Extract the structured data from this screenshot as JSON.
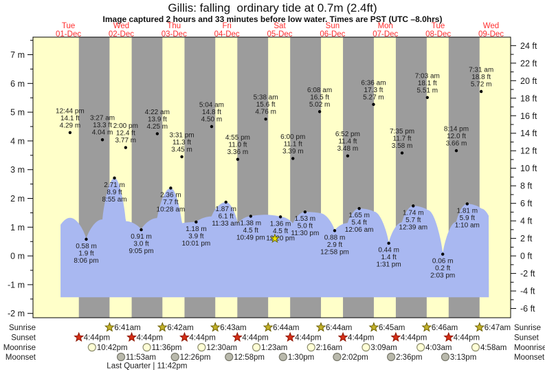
{
  "title": "Gillis: falling  ordinary tide at 0.7m (2.4ft)",
  "subtitle": "Image captured 2 hours and 33 minutes before low water. Times are PST (UTC –8.0hrs)",
  "chart_data": {
    "type": "area",
    "title": "Gillis: falling ordinary tide at 0.7m (2.4ft)",
    "y_axis_left": {
      "unit": "m",
      "min": -2,
      "max": 7,
      "major_step": 1
    },
    "y_axis_right": {
      "unit": "ft",
      "min": -6,
      "max": 24,
      "major_step": 2
    },
    "days": [
      {
        "name": "Tue",
        "date": "01-Dec"
      },
      {
        "name": "Wed",
        "date": "02-Dec"
      },
      {
        "name": "Thu",
        "date": "03-Dec"
      },
      {
        "name": "Fri",
        "date": "04-Dec"
      },
      {
        "name": "Sat",
        "date": "05-Dec"
      },
      {
        "name": "Sun",
        "date": "06-Dec"
      },
      {
        "name": "Mon",
        "date": "07-Dec"
      },
      {
        "name": "Tue",
        "date": "08-Dec"
      },
      {
        "name": "Wed",
        "date": "09-Dec"
      }
    ],
    "extremes": [
      {
        "kind": "high",
        "day": 0,
        "time24": "12:44",
        "time": "12:44 pm",
        "m": 4.29,
        "ft": 14.1
      },
      {
        "kind": "low",
        "day": 0,
        "time24": "20:06",
        "time": "8:06 pm",
        "m": 0.58,
        "ft": 1.9
      },
      {
        "kind": "high",
        "day": 1,
        "time24": "03:27",
        "time": "3:27 am",
        "m": 4.04,
        "ft": 13.3
      },
      {
        "kind": "low",
        "day": 1,
        "time24": "08:55",
        "time": "8:55 am",
        "m": 2.71,
        "ft": 8.9
      },
      {
        "kind": "high",
        "day": 1,
        "time24": "14:00",
        "time": "2:00 pm",
        "m": 3.77,
        "ft": 12.4
      },
      {
        "kind": "low",
        "day": 1,
        "time24": "21:05",
        "time": "9:05 pm",
        "m": 0.91,
        "ft": 3.0
      },
      {
        "kind": "high",
        "day": 2,
        "time24": "04:22",
        "time": "4:22 am",
        "m": 4.25,
        "ft": 13.9
      },
      {
        "kind": "low",
        "day": 2,
        "time24": "10:28",
        "time": "10:28 am",
        "m": 2.36,
        "ft": 7.7
      },
      {
        "kind": "high",
        "day": 2,
        "time24": "15:31",
        "time": "3:31 pm",
        "m": 3.45,
        "ft": 11.3
      },
      {
        "kind": "low",
        "day": 2,
        "time24": "22:01",
        "time": "10:01 pm",
        "m": 1.18,
        "ft": 3.9
      },
      {
        "kind": "high",
        "day": 3,
        "time24": "05:04",
        "time": "5:04 am",
        "m": 4.5,
        "ft": 14.8
      },
      {
        "kind": "low",
        "day": 3,
        "time24": "11:33",
        "time": "11:33 am",
        "m": 1.87,
        "ft": 6.1
      },
      {
        "kind": "high",
        "day": 3,
        "time24": "16:55",
        "time": "4:55 pm",
        "m": 3.36,
        "ft": 11.0
      },
      {
        "kind": "low",
        "day": 3,
        "time24": "22:49",
        "time": "10:49 pm",
        "m": 1.38,
        "ft": 4.5
      },
      {
        "kind": "high",
        "day": 4,
        "time24": "05:38",
        "time": "5:38 am",
        "m": 4.76,
        "ft": 15.6
      },
      {
        "kind": "low",
        "day": 4,
        "time24": "12:20",
        "time": "12:20 pm",
        "m": 1.36,
        "ft": 4.5
      },
      {
        "kind": "high",
        "day": 4,
        "time24": "18:00",
        "time": "6:00 pm",
        "m": 3.39,
        "ft": 11.1
      },
      {
        "kind": "low",
        "day": 4,
        "time24": "23:30",
        "time": "11:30 pm",
        "m": 1.53,
        "ft": 5.0
      },
      {
        "kind": "high",
        "day": 5,
        "time24": "06:08",
        "time": "6:08 am",
        "m": 5.02,
        "ft": 16.5
      },
      {
        "kind": "low",
        "day": 5,
        "time24": "12:58",
        "time": "12:58 pm",
        "m": 0.88,
        "ft": 2.9
      },
      {
        "kind": "high",
        "day": 5,
        "time24": "18:52",
        "time": "6:52 pm",
        "m": 3.48,
        "ft": 11.4
      },
      {
        "kind": "low",
        "day": 6,
        "time24": "00:06",
        "time": "12:06 am",
        "m": 1.65,
        "ft": 5.4
      },
      {
        "kind": "high",
        "day": 6,
        "time24": "06:36",
        "time": "6:36 am",
        "m": 5.27,
        "ft": 17.3
      },
      {
        "kind": "low",
        "day": 6,
        "time24": "13:31",
        "time": "1:31 pm",
        "m": 0.44,
        "ft": 1.4
      },
      {
        "kind": "high",
        "day": 6,
        "time24": "19:35",
        "time": "7:35 pm",
        "m": 3.58,
        "ft": 11.7
      },
      {
        "kind": "low",
        "day": 7,
        "time24": "00:39",
        "time": "12:39 am",
        "m": 1.74,
        "ft": 5.7
      },
      {
        "kind": "high",
        "day": 7,
        "time24": "07:03",
        "time": "7:03 am",
        "m": 5.51,
        "ft": 18.1
      },
      {
        "kind": "low",
        "day": 7,
        "time24": "14:03",
        "time": "2:03 pm",
        "m": 0.06,
        "ft": 0.2
      },
      {
        "kind": "high",
        "day": 7,
        "time24": "20:14",
        "time": "8:14 pm",
        "m": 3.66,
        "ft": 12.0
      },
      {
        "kind": "low",
        "day": 8,
        "time24": "01:10",
        "time": "1:10 am",
        "m": 1.81,
        "ft": 5.9
      },
      {
        "kind": "high",
        "day": 8,
        "time24": "07:31",
        "time": "7:31 am",
        "m": 5.72,
        "ft": 18.8
      }
    ],
    "current_marker": {
      "day": 4,
      "time24": "09:47"
    },
    "colors": {
      "day_band": "#ffffc9",
      "night_band": "#9c9c9c",
      "water": "#a9b8f1",
      "day_label": "#ff2e2e",
      "label_text": "#1c1c1c",
      "sunrise_star": "#c3b22a",
      "sunset_star": "#d62f17",
      "moonrise_circle": "#ffffd6",
      "moonset_circle": "#b9b9ac",
      "marker_star": "#f0e400"
    }
  },
  "astro": {
    "rows": [
      {
        "id": "sunrise",
        "label": "Sunrise",
        "icon": "star-sunrise",
        "events": [
          {
            "day": 1,
            "time24": "06:41",
            "label": "6:41am"
          },
          {
            "day": 2,
            "time24": "06:42",
            "label": "6:42am"
          },
          {
            "day": 3,
            "time24": "06:43",
            "label": "6:43am"
          },
          {
            "day": 4,
            "time24": "06:44",
            "label": "6:44am"
          },
          {
            "day": 5,
            "time24": "06:44",
            "label": "6:44am"
          },
          {
            "day": 6,
            "time24": "06:45",
            "label": "6:45am"
          },
          {
            "day": 7,
            "time24": "06:46",
            "label": "6:46am"
          },
          {
            "day": 8,
            "time24": "06:47",
            "label": "6:47am"
          }
        ]
      },
      {
        "id": "sunset",
        "label": "Sunset",
        "icon": "star-sunset",
        "events": [
          {
            "day": 0,
            "time24": "16:44",
            "label": "4:44pm"
          },
          {
            "day": 1,
            "time24": "16:44",
            "label": "4:44pm"
          },
          {
            "day": 2,
            "time24": "16:44",
            "label": "4:44pm"
          },
          {
            "day": 3,
            "time24": "16:44",
            "label": "4:44pm"
          },
          {
            "day": 4,
            "time24": "16:44",
            "label": "4:44pm"
          },
          {
            "day": 5,
            "time24": "16:44",
            "label": "4:44pm"
          },
          {
            "day": 6,
            "time24": "16:44",
            "label": "4:44pm"
          },
          {
            "day": 7,
            "time24": "16:44",
            "label": "4:44pm"
          }
        ]
      },
      {
        "id": "moonrise",
        "label": "Moonrise",
        "icon": "circle-moonrise",
        "events": [
          {
            "day": 0,
            "time24": "22:42",
            "label": "10:42pm"
          },
          {
            "day": 1,
            "time24": "23:36",
            "label": "11:36pm"
          },
          {
            "day": 3,
            "time24": "00:30",
            "label": "12:30am"
          },
          {
            "day": 4,
            "time24": "01:23",
            "label": "1:23am"
          },
          {
            "day": 5,
            "time24": "02:16",
            "label": "2:16am"
          },
          {
            "day": 6,
            "time24": "03:09",
            "label": "3:09am"
          },
          {
            "day": 7,
            "time24": "04:03",
            "label": "4:03am"
          },
          {
            "day": 8,
            "time24": "04:58",
            "label": "4:58am"
          }
        ]
      },
      {
        "id": "moonset",
        "label": "Moonset",
        "icon": "circle-moonset",
        "events": [
          {
            "day": 1,
            "time24": "11:53",
            "label": "11:53am"
          },
          {
            "day": 2,
            "time24": "12:26",
            "label": "12:26pm"
          },
          {
            "day": 3,
            "time24": "12:58",
            "label": "12:58pm"
          },
          {
            "day": 4,
            "time24": "13:30",
            "label": "1:30pm"
          },
          {
            "day": 5,
            "time24": "14:02",
            "label": "2:02pm"
          },
          {
            "day": 6,
            "time24": "14:36",
            "label": "2:36pm"
          },
          {
            "day": 7,
            "time24": "15:13",
            "label": "3:13pm"
          }
        ]
      }
    ],
    "moon_phase": {
      "day": 1,
      "time24": "23:42",
      "label": "Last Quarter | 11:42pm"
    }
  }
}
